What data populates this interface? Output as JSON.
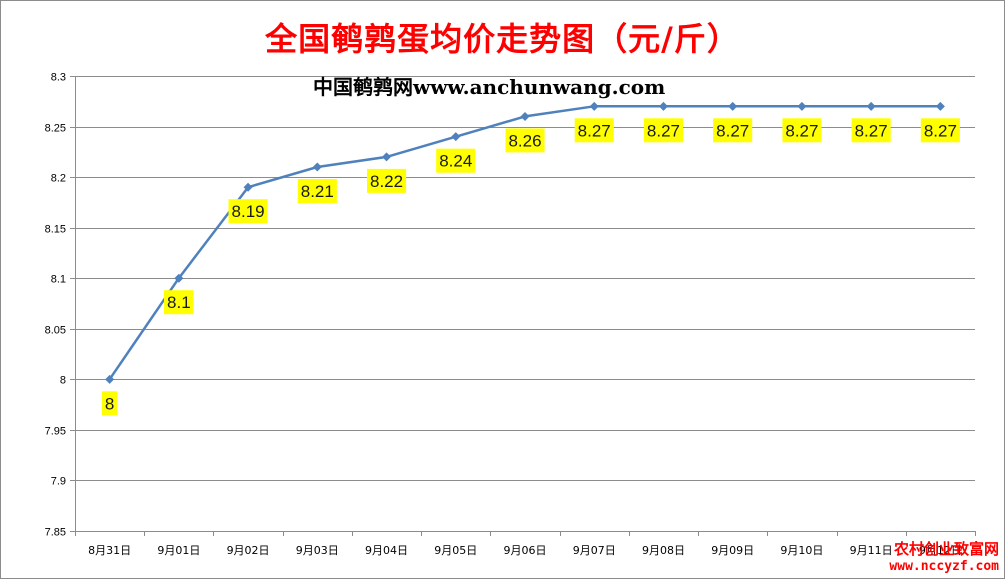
{
  "title": "全国鹌鹑蛋均价走势图（元/斤）",
  "watermark": "中国鹌鹑网www.anchunwang.com",
  "corner_mark": {
    "line1": "农村创业致富网",
    "line2": "www.nccyzf.com"
  },
  "colors": {
    "title": "#ff0000",
    "line": "#4f81bd",
    "data_label_bg": "#ffff00",
    "gridline": "#8c8c8c"
  },
  "chart_data": {
    "type": "line",
    "title": "全国鹌鹑蛋均价走势图（元/斤）",
    "xlabel": "",
    "ylabel": "",
    "categories": [
      "8月31日",
      "9月01日",
      "9月02日",
      "9月03日",
      "9月04日",
      "9月05日",
      "9月06日",
      "9月07日",
      "9月08日",
      "9月09日",
      "9月10日",
      "9月11日",
      "9月12日"
    ],
    "values": [
      8,
      8.1,
      8.19,
      8.21,
      8.22,
      8.24,
      8.26,
      8.27,
      8.27,
      8.27,
      8.27,
      8.27,
      8.27
    ],
    "data_labels": [
      "8",
      "8.1",
      "8.19",
      "8.21",
      "8.22",
      "8.24",
      "8.26",
      "8.27",
      "8.27",
      "8.27",
      "8.27",
      "8.27",
      "8.27"
    ],
    "ylim": [
      7.85,
      8.3
    ],
    "yticks": [
      7.85,
      7.9,
      7.95,
      8,
      8.05,
      8.1,
      8.15,
      8.2,
      8.25,
      8.3
    ],
    "ytick_labels": [
      "7.85",
      "7.9",
      "7.95",
      "8",
      "8.05",
      "8.1",
      "8.15",
      "8.2",
      "8.25",
      "8.3"
    ],
    "grid": true,
    "legend": "none",
    "marker": "diamond"
  }
}
